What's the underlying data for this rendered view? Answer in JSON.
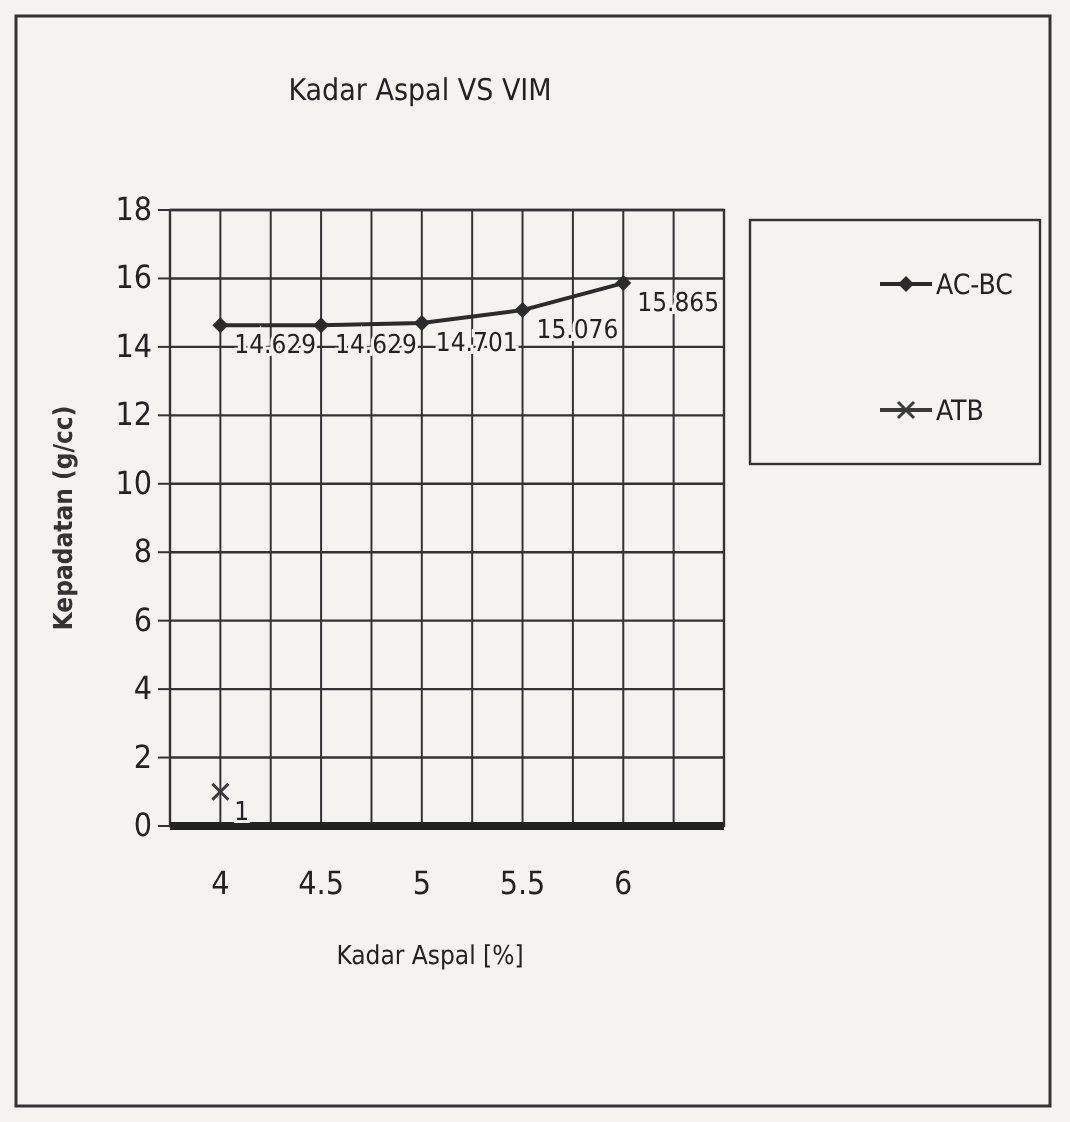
{
  "chart_data": {
    "type": "line",
    "title": "Kadar Aspal VS VIM",
    "xlabel": "Kadar Aspal [%]",
    "ylabel": "Kepadatan (g/cc)",
    "x": [
      4,
      4.5,
      5,
      5.5,
      6
    ],
    "series": [
      {
        "name": "AC-BC",
        "color": "#2b2b2b",
        "values": [
          14.629,
          14.629,
          14.701,
          15.076,
          15.865
        ],
        "value_labels": [
          "14.629",
          "14.629",
          "14.701",
          "15.076",
          "15.865"
        ],
        "marker": "diamond"
      },
      {
        "name": "ATB",
        "color": "#3a3a3a",
        "values": [
          1,
          null,
          null,
          null,
          null
        ],
        "value_labels": [
          "1",
          null,
          null,
          null,
          null
        ],
        "marker": "cross"
      }
    ],
    "xlim": [
      3.75,
      6.5
    ],
    "xticks": [
      {
        "value": 4,
        "label": "4"
      },
      {
        "value": 4.25,
        "label": null
      },
      {
        "value": 4.5,
        "label": "4.5"
      },
      {
        "value": 4.75,
        "label": null
      },
      {
        "value": 5,
        "label": "5"
      },
      {
        "value": 5.25,
        "label": null
      },
      {
        "value": 5.5,
        "label": "5.5"
      },
      {
        "value": 5.75,
        "label": null
      },
      {
        "value": 6,
        "label": "6"
      },
      {
        "value": 6.25,
        "label": null
      }
    ],
    "ylim": [
      0,
      18
    ],
    "yticks": [
      0,
      2,
      4,
      6,
      8,
      10,
      12,
      14,
      16,
      18
    ],
    "grid": true,
    "legend": "right"
  }
}
